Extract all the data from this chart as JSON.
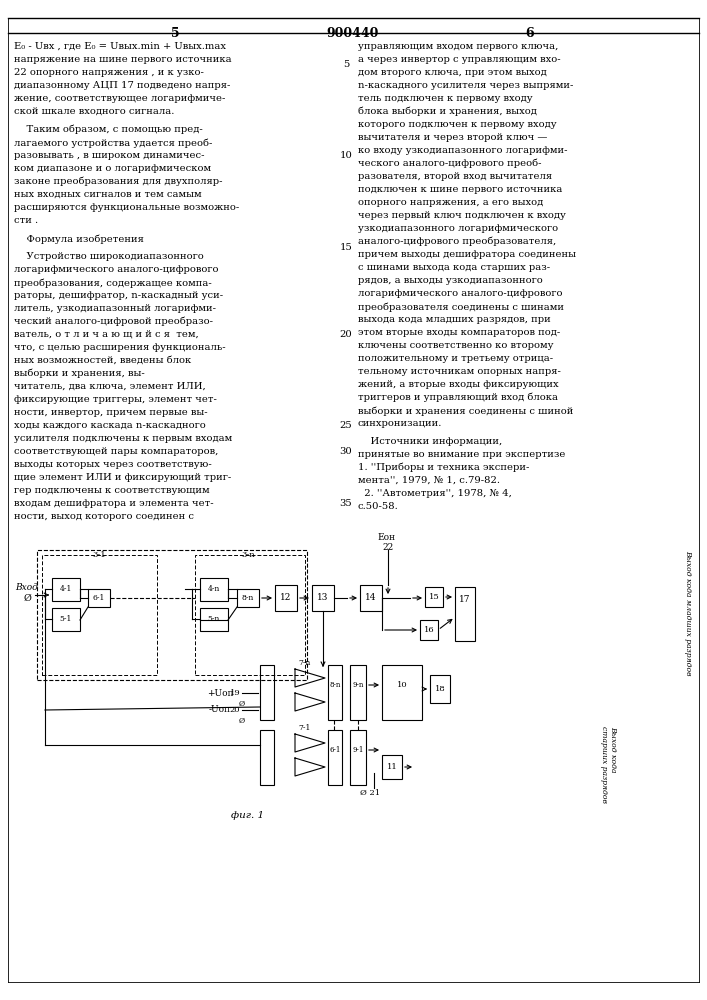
{
  "bg_color": "#ffffff",
  "header_num": "900440",
  "left_page": "5",
  "right_page": "6"
}
